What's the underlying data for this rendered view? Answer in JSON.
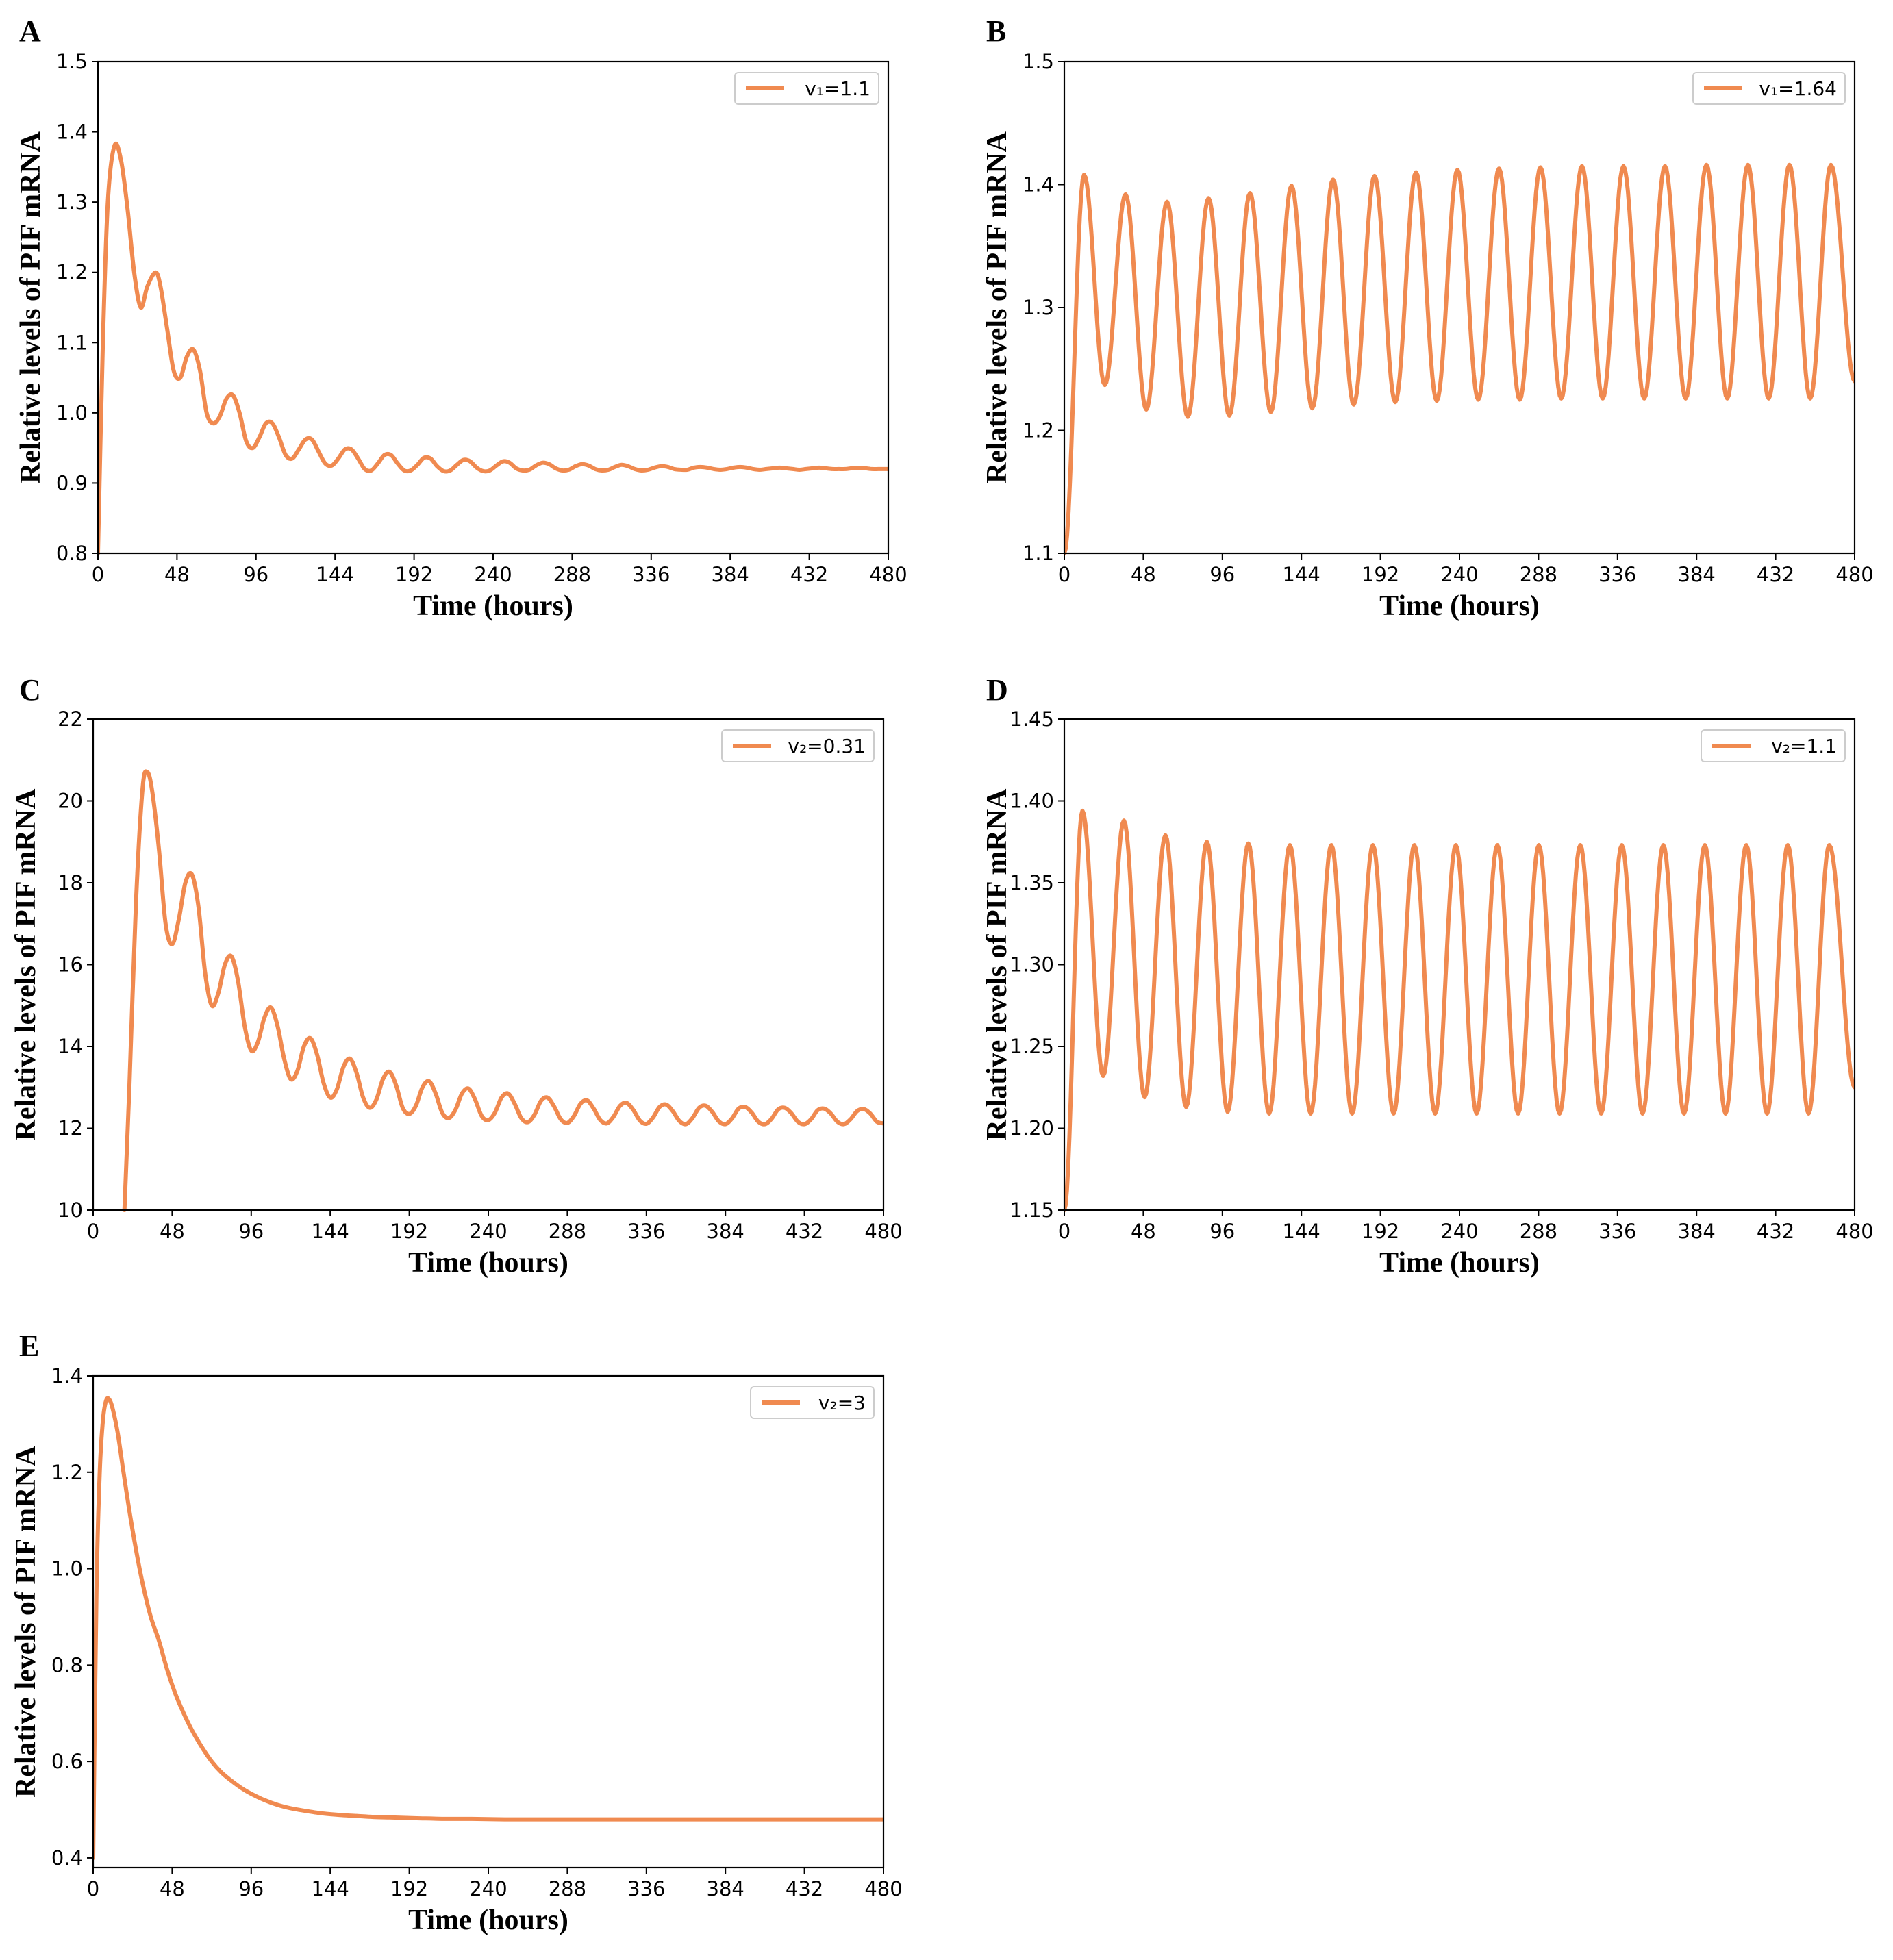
{
  "figure": {
    "line_color": "#F08A50"
  },
  "chart_data": [
    {
      "panel": "A",
      "type": "line",
      "xlabel": "Time (hours)",
      "ylabel": "Relative levels of PIF mRNA",
      "xlim": [
        0,
        480
      ],
      "ylim": [
        0.8,
        1.5
      ],
      "xticks": [
        0,
        48,
        96,
        144,
        192,
        240,
        288,
        336,
        384,
        432,
        480
      ],
      "yticks": [
        0.8,
        0.9,
        1.0,
        1.1,
        1.2,
        1.3,
        1.4,
        1.5
      ],
      "ytick_labels": [
        "0.8",
        "0.9",
        "1.0",
        "1.1",
        "1.2",
        "1.3",
        "1.4",
        "1.5"
      ],
      "legend_position": "top-right",
      "series": [
        {
          "name": "v₁=1.1",
          "x": [
            0,
            3,
            6,
            10,
            14,
            18,
            22,
            26,
            30,
            35,
            38,
            42,
            46,
            50,
            54,
            58,
            62,
            66,
            70,
            74,
            78,
            82,
            86,
            90,
            94,
            98,
            102,
            106,
            110,
            114,
            118,
            122,
            126,
            130,
            134,
            138,
            142,
            146,
            150,
            154,
            158,
            162,
            166,
            170,
            174,
            178,
            182,
            186,
            190,
            194,
            198,
            202,
            206,
            210,
            214,
            218,
            222,
            226,
            230,
            234,
            238,
            242,
            246,
            250,
            254,
            258,
            262,
            266,
            270,
            274,
            278,
            282,
            286,
            290,
            294,
            298,
            302,
            306,
            310,
            314,
            318,
            322,
            326,
            330,
            334,
            338,
            342,
            346,
            350,
            354,
            358,
            362,
            366,
            370,
            374,
            378,
            382,
            386,
            390,
            394,
            398,
            402,
            406,
            410,
            414,
            418,
            422,
            426,
            430,
            434,
            438,
            442,
            446,
            450,
            454,
            458,
            462,
            466,
            470,
            474,
            478,
            480
          ],
          "y": [
            0.8,
            1.1,
            1.3,
            1.38,
            1.36,
            1.29,
            1.2,
            1.15,
            1.18,
            1.2,
            1.18,
            1.12,
            1.06,
            1.05,
            1.08,
            1.09,
            1.06,
            1.0,
            0.985,
            0.995,
            1.02,
            1.025,
            1.0,
            0.96,
            0.95,
            0.965,
            0.985,
            0.985,
            0.965,
            0.94,
            0.935,
            0.948,
            0.962,
            0.962,
            0.945,
            0.928,
            0.925,
            0.935,
            0.948,
            0.948,
            0.935,
            0.92,
            0.918,
            0.928,
            0.94,
            0.94,
            0.928,
            0.918,
            0.918,
            0.926,
            0.936,
            0.935,
            0.924,
            0.917,
            0.918,
            0.926,
            0.933,
            0.931,
            0.922,
            0.917,
            0.918,
            0.925,
            0.931,
            0.929,
            0.921,
            0.918,
            0.919,
            0.925,
            0.929,
            0.927,
            0.921,
            0.918,
            0.919,
            0.924,
            0.927,
            0.925,
            0.92,
            0.918,
            0.919,
            0.923,
            0.926,
            0.924,
            0.92,
            0.918,
            0.919,
            0.922,
            0.924,
            0.923,
            0.92,
            0.919,
            0.919,
            0.922,
            0.923,
            0.922,
            0.92,
            0.919,
            0.92,
            0.922,
            0.923,
            0.922,
            0.92,
            0.919,
            0.92,
            0.921,
            0.922,
            0.921,
            0.92,
            0.919,
            0.92,
            0.921,
            0.922,
            0.921,
            0.92,
            0.92,
            0.92,
            0.921,
            0.921,
            0.921,
            0.92,
            0.92,
            0.92,
            0.92
          ]
        }
      ]
    },
    {
      "panel": "B",
      "type": "line",
      "xlabel": "Time (hours)",
      "ylabel": "Relative levels of PIF mRNA",
      "xlim": [
        0,
        480
      ],
      "ylim": [
        1.1,
        1.5
      ],
      "xticks": [
        0,
        48,
        96,
        144,
        192,
        240,
        288,
        336,
        384,
        432,
        480
      ],
      "yticks": [
        1.1,
        1.2,
        1.3,
        1.4,
        1.5
      ],
      "ytick_labels": [
        "1.1",
        "1.2",
        "1.3",
        "1.4",
        "1.5"
      ],
      "legend_position": "top-right",
      "oscillation": {
        "start_value": 1.1,
        "first_peak_time": 12,
        "period": 25.2,
        "peaks": [
          1.408,
          1.392,
          1.386,
          1.389,
          1.393,
          1.399,
          1.404,
          1.407,
          1.41,
          1.412,
          1.413,
          1.414,
          1.415,
          1.415,
          1.415,
          1.416,
          1.416,
          1.416,
          1.416
        ],
        "troughs": [
          1.237,
          1.217,
          1.211,
          1.212,
          1.215,
          1.218,
          1.221,
          1.223,
          1.224,
          1.225,
          1.225,
          1.226,
          1.226,
          1.226,
          1.226,
          1.226,
          1.226,
          1.226
        ],
        "end_value": 1.24
      },
      "series": [
        {
          "name": "v₁=1.64"
        }
      ]
    },
    {
      "panel": "C",
      "type": "line",
      "xlabel": "Time (hours)",
      "ylabel": "Relative levels of PIF mRNA",
      "xlim": [
        0,
        480
      ],
      "ylim": [
        10,
        22
      ],
      "xticks": [
        0,
        48,
        96,
        144,
        192,
        240,
        288,
        336,
        384,
        432,
        480
      ],
      "yticks": [
        10,
        12,
        14,
        16,
        18,
        20,
        22
      ],
      "ytick_labels": [
        "10",
        "12",
        "14",
        "16",
        "18",
        "20",
        "22"
      ],
      "legend_position": "top-right",
      "series": [
        {
          "name": "v₂=0.31",
          "x": [
            19,
            22,
            26,
            30,
            33,
            36,
            40,
            44,
            48,
            52,
            56,
            60,
            64,
            68,
            72,
            76,
            80,
            84,
            88,
            92,
            96,
            100,
            104,
            108,
            112,
            116,
            120,
            124,
            128,
            132,
            136,
            140,
            144,
            148,
            152,
            156,
            160,
            164,
            168,
            172,
            176,
            180,
            184,
            188,
            192,
            196,
            200,
            204,
            208,
            212,
            216,
            220,
            224,
            228,
            232,
            236,
            240,
            244,
            248,
            252,
            256,
            260,
            264,
            268,
            272,
            276,
            280,
            284,
            288,
            292,
            296,
            300,
            304,
            308,
            312,
            316,
            320,
            324,
            328,
            332,
            336,
            340,
            344,
            348,
            352,
            356,
            360,
            364,
            368,
            372,
            376,
            380,
            384,
            388,
            392,
            396,
            400,
            404,
            408,
            412,
            416,
            420,
            424,
            428,
            432,
            436,
            440,
            444,
            448,
            452,
            456,
            460,
            464,
            468,
            472,
            476,
            480
          ],
          "y": [
            10.0,
            13.0,
            17.5,
            20.3,
            20.7,
            20.2,
            18.8,
            17.0,
            16.5,
            17.1,
            18.0,
            18.2,
            17.4,
            15.8,
            15.0,
            15.3,
            16.0,
            16.2,
            15.6,
            14.5,
            13.9,
            14.1,
            14.7,
            14.95,
            14.5,
            13.7,
            13.2,
            13.4,
            14.0,
            14.2,
            13.8,
            13.1,
            12.75,
            12.95,
            13.5,
            13.7,
            13.35,
            12.75,
            12.5,
            12.7,
            13.2,
            13.38,
            13.05,
            12.5,
            12.35,
            12.55,
            13.0,
            13.15,
            12.85,
            12.38,
            12.25,
            12.45,
            12.85,
            12.97,
            12.7,
            12.3,
            12.2,
            12.38,
            12.75,
            12.85,
            12.6,
            12.25,
            12.15,
            12.33,
            12.67,
            12.75,
            12.53,
            12.22,
            12.13,
            12.3,
            12.6,
            12.68,
            12.48,
            12.2,
            12.12,
            12.28,
            12.55,
            12.62,
            12.45,
            12.19,
            12.11,
            12.26,
            12.52,
            12.58,
            12.42,
            12.18,
            12.1,
            12.25,
            12.5,
            12.55,
            12.4,
            12.17,
            12.1,
            12.24,
            12.48,
            12.52,
            12.38,
            12.16,
            12.1,
            12.23,
            12.46,
            12.5,
            12.37,
            12.16,
            12.1,
            12.22,
            12.44,
            12.48,
            12.36,
            12.16,
            12.1,
            12.22,
            12.42,
            12.47,
            12.36,
            12.16,
            12.12
          ]
        }
      ]
    },
    {
      "panel": "D",
      "type": "line",
      "xlabel": "Time (hours)",
      "ylabel": "Relative levels of PIF mRNA",
      "xlim": [
        0,
        480
      ],
      "ylim": [
        1.15,
        1.45
      ],
      "xticks": [
        0,
        48,
        96,
        144,
        192,
        240,
        288,
        336,
        384,
        432,
        480
      ],
      "yticks": [
        1.15,
        1.2,
        1.25,
        1.3,
        1.35,
        1.4,
        1.45
      ],
      "ytick_labels": [
        "1.15",
        "1.20",
        "1.25",
        "1.30",
        "1.35",
        "1.40",
        "1.45"
      ],
      "legend_position": "top-right",
      "oscillation": {
        "start_value": 1.15,
        "first_peak_time": 11,
        "period": 25.2,
        "peaks": [
          1.394,
          1.388,
          1.379,
          1.375,
          1.374,
          1.373,
          1.373,
          1.373,
          1.373,
          1.373,
          1.373,
          1.373,
          1.373,
          1.373,
          1.373,
          1.373,
          1.373,
          1.373,
          1.373
        ],
        "troughs": [
          1.232,
          1.219,
          1.213,
          1.21,
          1.209,
          1.209,
          1.209,
          1.209,
          1.209,
          1.209,
          1.209,
          1.209,
          1.209,
          1.209,
          1.209,
          1.209,
          1.209,
          1.209
        ],
        "end_value": 1.225
      },
      "series": [
        {
          "name": "v₂=1.1"
        }
      ]
    },
    {
      "panel": "E",
      "type": "line",
      "xlabel": "Time (hours)",
      "ylabel": "Relative levels of PIF mRNA",
      "xlim": [
        0,
        480
      ],
      "ylim": [
        0.38,
        1.4
      ],
      "xticks": [
        0,
        48,
        96,
        144,
        192,
        240,
        288,
        336,
        384,
        432,
        480
      ],
      "yticks": [
        0.4,
        0.6,
        0.8,
        1.0,
        1.2,
        1.4
      ],
      "ytick_labels": [
        "0.4",
        "0.6",
        "0.8",
        "1.0",
        "1.2",
        "1.4"
      ],
      "legend_position": "top-right",
      "series": [
        {
          "name": "v₂=3",
          "x": [
            0,
            2,
            4,
            6,
            8,
            10,
            12,
            15,
            18,
            22,
            26,
            30,
            35,
            40,
            45,
            50,
            55,
            60,
            66,
            72,
            78,
            84,
            90,
            96,
            104,
            112,
            120,
            130,
            140,
            150,
            160,
            170,
            180,
            190,
            200,
            215,
            230,
            250,
            270,
            300,
            340,
            380,
            420,
            460,
            480
          ],
          "y": [
            0.4,
            0.95,
            1.2,
            1.31,
            1.35,
            1.35,
            1.33,
            1.28,
            1.21,
            1.12,
            1.04,
            0.97,
            0.9,
            0.85,
            0.79,
            0.74,
            0.7,
            0.665,
            0.63,
            0.6,
            0.577,
            0.56,
            0.545,
            0.533,
            0.52,
            0.51,
            0.503,
            0.497,
            0.492,
            0.489,
            0.487,
            0.485,
            0.484,
            0.483,
            0.482,
            0.481,
            0.481,
            0.48,
            0.48,
            0.48,
            0.48,
            0.48,
            0.48,
            0.48,
            0.48
          ]
        }
      ]
    }
  ]
}
